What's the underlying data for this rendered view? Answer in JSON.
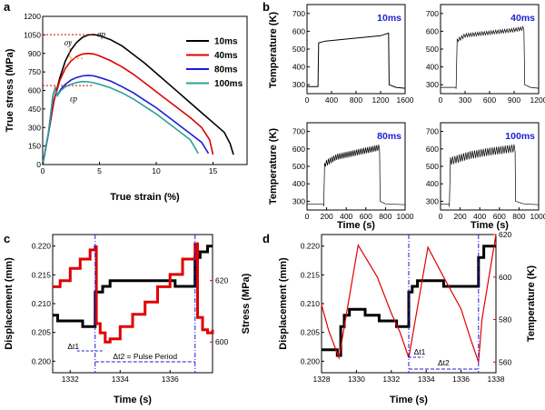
{
  "chart_data": [
    {
      "panel": "a",
      "type": "line",
      "xlabel": "True strain (%)",
      "ylabel": "True stress (MPa)",
      "xlim": [
        0,
        18
      ],
      "ylim": [
        0,
        1200
      ],
      "xticks": [
        "0",
        "5",
        "10",
        "15"
      ],
      "yticks": [
        "0",
        "150",
        "300",
        "450",
        "600",
        "750",
        "900",
        "1050",
        "1200"
      ],
      "legend_position": "top-right",
      "annotations": [
        "σp",
        "σy",
        "εp"
      ],
      "series": [
        {
          "name": "10ms",
          "color": "#000000",
          "points": [
            [
              0,
              0
            ],
            [
              0.5,
              250
            ],
            [
              1,
              520
            ],
            [
              1.5,
              700
            ],
            [
              2,
              840
            ],
            [
              2.5,
              930
            ],
            [
              3,
              990
            ],
            [
              3.5,
              1030
            ],
            [
              4,
              1050
            ],
            [
              4.5,
              1052
            ],
            [
              5,
              1045
            ],
            [
              6,
              1010
            ],
            [
              7,
              960
            ],
            [
              8,
              890
            ],
            [
              9,
              820
            ],
            [
              10,
              740
            ],
            [
              11,
              660
            ],
            [
              12,
              580
            ],
            [
              13,
              500
            ],
            [
              14,
              420
            ],
            [
              15,
              340
            ],
            [
              16,
              260
            ],
            [
              16.5,
              170
            ],
            [
              16.8,
              80
            ]
          ]
        },
        {
          "name": "40ms",
          "color": "#e00000",
          "points": [
            [
              0,
              0
            ],
            [
              0.5,
              250
            ],
            [
              1,
              520
            ],
            [
              1.5,
              680
            ],
            [
              2,
              780
            ],
            [
              2.5,
              840
            ],
            [
              3,
              875
            ],
            [
              3.5,
              895
            ],
            [
              4,
              900
            ],
            [
              4.5,
              895
            ],
            [
              5,
              880
            ],
            [
              6,
              840
            ],
            [
              7,
              790
            ],
            [
              8,
              730
            ],
            [
              9,
              660
            ],
            [
              10,
              590
            ],
            [
              11,
              520
            ],
            [
              12,
              450
            ],
            [
              13,
              380
            ],
            [
              14,
              300
            ],
            [
              14.7,
              200
            ],
            [
              15,
              80
            ]
          ]
        },
        {
          "name": "80ms",
          "color": "#1a1ae0",
          "points": [
            [
              0,
              0
            ],
            [
              0.5,
              250
            ],
            [
              0.9,
              560
            ],
            [
              1.1,
              620
            ],
            [
              1.3,
              560
            ],
            [
              1.6,
              610
            ],
            [
              2,
              650
            ],
            [
              2.5,
              685
            ],
            [
              3,
              705
            ],
            [
              3.5,
              718
            ],
            [
              4,
              722
            ],
            [
              4.5,
              718
            ],
            [
              5,
              705
            ],
            [
              6,
              675
            ],
            [
              7,
              630
            ],
            [
              8,
              580
            ],
            [
              9,
              520
            ],
            [
              10,
              460
            ],
            [
              11,
              390
            ],
            [
              12,
              320
            ],
            [
              13,
              250
            ],
            [
              14,
              180
            ],
            [
              14.6,
              90
            ]
          ]
        },
        {
          "name": "100ms",
          "color": "#2aa198",
          "points": [
            [
              0,
              0
            ],
            [
              0.5,
              250
            ],
            [
              0.9,
              560
            ],
            [
              1.1,
              610
            ],
            [
              1.3,
              560
            ],
            [
              1.6,
              600
            ],
            [
              2,
              630
            ],
            [
              2.5,
              650
            ],
            [
              3,
              665
            ],
            [
              3.5,
              672
            ],
            [
              4,
              670
            ],
            [
              4.5,
              662
            ],
            [
              5,
              650
            ],
            [
              6,
              620
            ],
            [
              7,
              580
            ],
            [
              8,
              530
            ],
            [
              9,
              470
            ],
            [
              10,
              410
            ],
            [
              11,
              340
            ],
            [
              12,
              270
            ],
            [
              13,
              200
            ],
            [
              13.7,
              90
            ]
          ]
        }
      ]
    },
    {
      "panel": "b",
      "type": "line",
      "ylabel": "Temperature (K)",
      "xlabel": "Time (s)",
      "insets": [
        {
          "label": "10ms",
          "xlim": [
            0,
            1600
          ],
          "xticks": [
            "0",
            "400",
            "800",
            "1200",
            "1600"
          ],
          "ylim": [
            250,
            750
          ],
          "yticks": [
            "300",
            "400",
            "500",
            "600",
            "700"
          ],
          "points": [
            [
              0,
              290
            ],
            [
              180,
              290
            ],
            [
              190,
              535
            ],
            [
              300,
              545
            ],
            [
              600,
              555
            ],
            [
              900,
              565
            ],
            [
              1200,
              575
            ],
            [
              1330,
              590
            ],
            [
              1340,
              300
            ],
            [
              1450,
              285
            ],
            [
              1600,
              280
            ]
          ],
          "noise": 0
        },
        {
          "label": "40ms",
          "xlim": [
            0,
            1200
          ],
          "xticks": [
            "0",
            "300",
            "600",
            "900",
            "1200"
          ],
          "ylim": [
            250,
            750
          ],
          "yticks": [
            "300",
            "400",
            "500",
            "600",
            "700"
          ],
          "points": [
            [
              0,
              285
            ],
            [
              190,
              285
            ],
            [
              200,
              545
            ],
            [
              300,
              575
            ],
            [
              600,
              590
            ],
            [
              900,
              605
            ],
            [
              1020,
              615
            ],
            [
              1030,
              300
            ],
            [
              1100,
              285
            ],
            [
              1200,
              280
            ]
          ],
          "noise": 20
        },
        {
          "label": "80ms",
          "xlim": [
            0,
            1000
          ],
          "xticks": [
            "0",
            "200",
            "400",
            "600",
            "800",
            "1000"
          ],
          "ylim": [
            250,
            750
          ],
          "yticks": [
            "300",
            "400",
            "500",
            "600",
            "700"
          ],
          "points": [
            [
              0,
              285
            ],
            [
              170,
              285
            ],
            [
              180,
              510
            ],
            [
              300,
              550
            ],
            [
              500,
              575
            ],
            [
              700,
              600
            ],
            [
              740,
              605
            ],
            [
              745,
              300
            ],
            [
              800,
              285
            ],
            [
              1000,
              280
            ]
          ],
          "noise": 35
        },
        {
          "label": "100ms",
          "xlim": [
            0,
            1000
          ],
          "xticks": [
            "0",
            "200",
            "400",
            "600",
            "800",
            "1000"
          ],
          "ylim": [
            250,
            750
          ],
          "yticks": [
            "300",
            "400",
            "500",
            "600",
            "700"
          ],
          "points": [
            [
              0,
              285
            ],
            [
              90,
              285
            ],
            [
              100,
              525
            ],
            [
              300,
              560
            ],
            [
              500,
              580
            ],
            [
              700,
              595
            ],
            [
              760,
              600
            ],
            [
              765,
              300
            ],
            [
              850,
              285
            ],
            [
              1000,
              280
            ]
          ],
          "noise": 45
        }
      ]
    },
    {
      "panel": "c",
      "type": "line",
      "xlabel": "Time (s)",
      "ylabel_left": "Displacement (mm)",
      "ylabel_right": "Stress (MPa)",
      "xlim": [
        1331.3,
        1337.7
      ],
      "xticks": [
        "1332",
        "1334",
        "1336"
      ],
      "ylim_left": [
        0.198,
        0.222
      ],
      "yticks_left": [
        "0.200",
        "0.205",
        "0.210",
        "0.215",
        "0.220"
      ],
      "ylim_right": [
        590,
        635
      ],
      "yticks_right": [
        "600",
        "620"
      ],
      "annotations": [
        "Δt1",
        "Δt2 = Pulse Period"
      ],
      "vlines": [
        1333.0,
        1337.0
      ],
      "displacement": [
        [
          1331.3,
          0.208
        ],
        [
          1331.5,
          0.208
        ],
        [
          1331.5,
          0.207
        ],
        [
          1332.5,
          0.207
        ],
        [
          1332.5,
          0.206
        ],
        [
          1333.0,
          0.206
        ],
        [
          1333.0,
          0.212
        ],
        [
          1333.3,
          0.212
        ],
        [
          1333.3,
          0.213
        ],
        [
          1333.6,
          0.213
        ],
        [
          1333.6,
          0.214
        ],
        [
          1336.2,
          0.214
        ],
        [
          1336.2,
          0.213
        ],
        [
          1337.0,
          0.213
        ],
        [
          1337.0,
          0.218
        ],
        [
          1337.2,
          0.218
        ],
        [
          1337.2,
          0.219
        ],
        [
          1337.5,
          0.219
        ],
        [
          1337.5,
          0.22
        ],
        [
          1337.7,
          0.22
        ]
      ],
      "stress": [
        [
          1331.3,
          618
        ],
        [
          1331.6,
          620
        ],
        [
          1332.0,
          624
        ],
        [
          1332.4,
          627
        ],
        [
          1332.8,
          630
        ],
        [
          1333.0,
          631
        ],
        [
          1333.05,
          606
        ],
        [
          1333.2,
          603
        ],
        [
          1333.4,
          600
        ],
        [
          1333.6,
          601
        ],
        [
          1334.0,
          605
        ],
        [
          1334.5,
          609
        ],
        [
          1335.0,
          613
        ],
        [
          1335.5,
          618
        ],
        [
          1336.0,
          622
        ],
        [
          1336.5,
          627
        ],
        [
          1337.0,
          632
        ],
        [
          1337.1,
          608
        ],
        [
          1337.3,
          604
        ],
        [
          1337.5,
          603
        ],
        [
          1337.7,
          604
        ]
      ]
    },
    {
      "panel": "d",
      "type": "line",
      "xlabel": "Time (s)",
      "ylabel_left": "Displacement (mm)",
      "ylabel_right": "Temperature (K)",
      "xlim": [
        1328,
        1338
      ],
      "xticks": [
        "1328",
        "1330",
        "1332",
        "1334",
        "1336",
        "1338"
      ],
      "ylim_left": [
        0.198,
        0.222
      ],
      "yticks_left": [
        "0.200",
        "0.205",
        "0.210",
        "0.215",
        "0.220"
      ],
      "ylim_right": [
        555,
        620
      ],
      "yticks_right": [
        "560",
        "580",
        "600",
        "620"
      ],
      "annotations": [
        "Δt1",
        "Δt2"
      ],
      "vlines": [
        1333.0,
        1337.0
      ],
      "displacement": [
        [
          1328,
          0.202
        ],
        [
          1328.9,
          0.202
        ],
        [
          1328.9,
          0.201
        ],
        [
          1329.1,
          0.201
        ],
        [
          1329.1,
          0.206
        ],
        [
          1329.3,
          0.206
        ],
        [
          1329.3,
          0.208
        ],
        [
          1329.6,
          0.208
        ],
        [
          1329.6,
          0.209
        ],
        [
          1330.5,
          0.209
        ],
        [
          1330.5,
          0.208
        ],
        [
          1331.3,
          0.208
        ],
        [
          1331.3,
          0.207
        ],
        [
          1332.3,
          0.207
        ],
        [
          1332.3,
          0.206
        ],
        [
          1333.0,
          0.206
        ],
        [
          1333.0,
          0.212
        ],
        [
          1333.2,
          0.212
        ],
        [
          1333.2,
          0.213
        ],
        [
          1333.5,
          0.213
        ],
        [
          1333.5,
          0.214
        ],
        [
          1335.0,
          0.214
        ],
        [
          1335.0,
          0.213
        ],
        [
          1337.0,
          0.213
        ],
        [
          1337.0,
          0.218
        ],
        [
          1337.3,
          0.218
        ],
        [
          1337.3,
          0.22
        ],
        [
          1338,
          0.22
        ]
      ],
      "temperature": [
        [
          1328,
          587
        ],
        [
          1328.4,
          575
        ],
        [
          1329.0,
          562
        ],
        [
          1330.1,
          615
        ],
        [
          1331.2,
          600
        ],
        [
          1332.0,
          583
        ],
        [
          1332.5,
          574
        ],
        [
          1333.0,
          562
        ],
        [
          1334.1,
          614
        ],
        [
          1335.0,
          600
        ],
        [
          1336.0,
          585
        ],
        [
          1336.5,
          572
        ],
        [
          1337.0,
          560
        ],
        [
          1337.2,
          580
        ],
        [
          1338,
          620
        ]
      ]
    }
  ]
}
